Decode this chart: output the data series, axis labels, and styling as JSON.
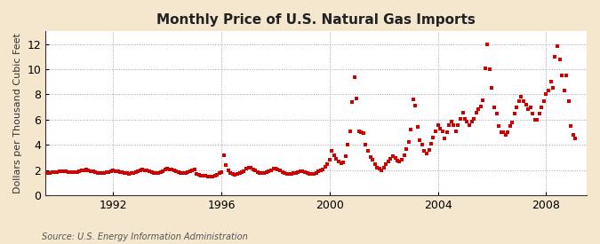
{
  "title": "Monthly Price of U.S. Natural Gas Imports",
  "ylabel": "Dollars per Thousand Cubic Feet",
  "source": "Source: U.S. Energy Information Administration",
  "figure_bg": "#f5e6ce",
  "plot_bg": "#ffffff",
  "marker_color": "#cc0000",
  "grid_color": "#999999",
  "ylim": [
    0,
    13
  ],
  "yticks": [
    0,
    2,
    4,
    6,
    8,
    10,
    12
  ],
  "xticks": [
    1992,
    1996,
    2000,
    2004,
    2008
  ],
  "xlim_start": 1989.5,
  "xlim_end": 2009.5,
  "data": [
    [
      1989.08,
      1.83
    ],
    [
      1989.17,
      1.8
    ],
    [
      1989.25,
      1.79
    ],
    [
      1989.33,
      1.77
    ],
    [
      1989.42,
      1.75
    ],
    [
      1989.5,
      1.74
    ],
    [
      1989.58,
      1.76
    ],
    [
      1989.67,
      1.78
    ],
    [
      1989.75,
      1.82
    ],
    [
      1989.83,
      1.85
    ],
    [
      1989.92,
      1.87
    ],
    [
      1990.0,
      1.9
    ],
    [
      1990.08,
      1.92
    ],
    [
      1990.17,
      1.93
    ],
    [
      1990.25,
      1.9
    ],
    [
      1990.33,
      1.87
    ],
    [
      1990.42,
      1.84
    ],
    [
      1990.5,
      1.83
    ],
    [
      1990.58,
      1.82
    ],
    [
      1990.67,
      1.84
    ],
    [
      1990.75,
      1.88
    ],
    [
      1990.83,
      1.96
    ],
    [
      1990.92,
      2.01
    ],
    [
      1991.0,
      2.03
    ],
    [
      1991.08,
      1.98
    ],
    [
      1991.17,
      1.93
    ],
    [
      1991.25,
      1.88
    ],
    [
      1991.33,
      1.84
    ],
    [
      1991.42,
      1.79
    ],
    [
      1991.5,
      1.77
    ],
    [
      1991.58,
      1.76
    ],
    [
      1991.67,
      1.77
    ],
    [
      1991.75,
      1.81
    ],
    [
      1991.83,
      1.87
    ],
    [
      1991.92,
      1.92
    ],
    [
      1992.0,
      1.95
    ],
    [
      1992.08,
      1.93
    ],
    [
      1992.17,
      1.89
    ],
    [
      1992.25,
      1.85
    ],
    [
      1992.33,
      1.81
    ],
    [
      1992.42,
      1.77
    ],
    [
      1992.5,
      1.75
    ],
    [
      1992.58,
      1.73
    ],
    [
      1992.67,
      1.75
    ],
    [
      1992.75,
      1.79
    ],
    [
      1992.83,
      1.87
    ],
    [
      1992.92,
      1.93
    ],
    [
      1993.0,
      1.99
    ],
    [
      1993.08,
      2.04
    ],
    [
      1993.17,
      2.01
    ],
    [
      1993.25,
      1.97
    ],
    [
      1993.33,
      1.91
    ],
    [
      1993.42,
      1.84
    ],
    [
      1993.5,
      1.79
    ],
    [
      1993.58,
      1.77
    ],
    [
      1993.67,
      1.79
    ],
    [
      1993.75,
      1.85
    ],
    [
      1993.83,
      1.94
    ],
    [
      1993.92,
      2.04
    ],
    [
      1994.0,
      2.09
    ],
    [
      1994.08,
      2.07
    ],
    [
      1994.17,
      2.02
    ],
    [
      1994.25,
      1.96
    ],
    [
      1994.33,
      1.89
    ],
    [
      1994.42,
      1.82
    ],
    [
      1994.5,
      1.77
    ],
    [
      1994.58,
      1.75
    ],
    [
      1994.67,
      1.77
    ],
    [
      1994.75,
      1.82
    ],
    [
      1994.83,
      1.91
    ],
    [
      1994.92,
      1.99
    ],
    [
      1995.0,
      2.04
    ],
    [
      1995.08,
      1.71
    ],
    [
      1995.17,
      1.63
    ],
    [
      1995.25,
      1.58
    ],
    [
      1995.33,
      1.56
    ],
    [
      1995.42,
      1.53
    ],
    [
      1995.5,
      1.5
    ],
    [
      1995.58,
      1.48
    ],
    [
      1995.67,
      1.5
    ],
    [
      1995.75,
      1.56
    ],
    [
      1995.83,
      1.66
    ],
    [
      1995.92,
      1.76
    ],
    [
      1996.0,
      1.83
    ],
    [
      1996.08,
      3.2
    ],
    [
      1996.17,
      2.4
    ],
    [
      1996.25,
      1.95
    ],
    [
      1996.33,
      1.8
    ],
    [
      1996.42,
      1.7
    ],
    [
      1996.5,
      1.66
    ],
    [
      1996.58,
      1.7
    ],
    [
      1996.67,
      1.74
    ],
    [
      1996.75,
      1.82
    ],
    [
      1996.83,
      1.94
    ],
    [
      1996.92,
      2.12
    ],
    [
      1997.0,
      2.22
    ],
    [
      1997.08,
      2.17
    ],
    [
      1997.17,
      2.07
    ],
    [
      1997.25,
      1.97
    ],
    [
      1997.33,
      1.87
    ],
    [
      1997.42,
      1.8
    ],
    [
      1997.5,
      1.77
    ],
    [
      1997.58,
      1.78
    ],
    [
      1997.67,
      1.82
    ],
    [
      1997.75,
      1.9
    ],
    [
      1997.83,
      2.0
    ],
    [
      1997.92,
      2.1
    ],
    [
      1998.0,
      2.14
    ],
    [
      1998.08,
      2.07
    ],
    [
      1998.17,
      1.97
    ],
    [
      1998.25,
      1.87
    ],
    [
      1998.33,
      1.77
    ],
    [
      1998.42,
      1.7
    ],
    [
      1998.5,
      1.67
    ],
    [
      1998.58,
      1.7
    ],
    [
      1998.67,
      1.74
    ],
    [
      1998.75,
      1.8
    ],
    [
      1998.83,
      1.87
    ],
    [
      1998.92,
      1.91
    ],
    [
      1999.0,
      1.89
    ],
    [
      1999.08,
      1.83
    ],
    [
      1999.17,
      1.76
    ],
    [
      1999.25,
      1.71
    ],
    [
      1999.33,
      1.69
    ],
    [
      1999.42,
      1.73
    ],
    [
      1999.5,
      1.8
    ],
    [
      1999.58,
      1.88
    ],
    [
      1999.67,
      1.98
    ],
    [
      1999.75,
      2.08
    ],
    [
      1999.83,
      2.25
    ],
    [
      1999.92,
      2.5
    ],
    [
      2000.0,
      2.8
    ],
    [
      2000.08,
      3.5
    ],
    [
      2000.17,
      3.2
    ],
    [
      2000.25,
      2.9
    ],
    [
      2000.33,
      2.65
    ],
    [
      2000.42,
      2.55
    ],
    [
      2000.5,
      2.6
    ],
    [
      2000.58,
      3.1
    ],
    [
      2000.67,
      4.0
    ],
    [
      2000.75,
      5.1
    ],
    [
      2000.83,
      7.4
    ],
    [
      2000.92,
      9.4
    ],
    [
      2001.0,
      7.7
    ],
    [
      2001.08,
      5.1
    ],
    [
      2001.17,
      5.0
    ],
    [
      2001.25,
      4.9
    ],
    [
      2001.33,
      4.0
    ],
    [
      2001.42,
      3.5
    ],
    [
      2001.5,
      3.0
    ],
    [
      2001.58,
      2.8
    ],
    [
      2001.67,
      2.5
    ],
    [
      2001.75,
      2.2
    ],
    [
      2001.83,
      2.1
    ],
    [
      2001.92,
      2.0
    ],
    [
      2002.0,
      2.2
    ],
    [
      2002.08,
      2.5
    ],
    [
      2002.17,
      2.7
    ],
    [
      2002.25,
      2.9
    ],
    [
      2002.33,
      3.1
    ],
    [
      2002.42,
      2.95
    ],
    [
      2002.5,
      2.75
    ],
    [
      2002.58,
      2.65
    ],
    [
      2002.67,
      2.8
    ],
    [
      2002.75,
      3.2
    ],
    [
      2002.83,
      3.7
    ],
    [
      2002.92,
      4.2
    ],
    [
      2003.0,
      5.2
    ],
    [
      2003.08,
      7.6
    ],
    [
      2003.17,
      7.1
    ],
    [
      2003.25,
      5.4
    ],
    [
      2003.33,
      4.4
    ],
    [
      2003.42,
      4.0
    ],
    [
      2003.5,
      3.5
    ],
    [
      2003.58,
      3.3
    ],
    [
      2003.67,
      3.6
    ],
    [
      2003.75,
      4.1
    ],
    [
      2003.83,
      4.6
    ],
    [
      2003.92,
      5.1
    ],
    [
      2004.0,
      5.6
    ],
    [
      2004.08,
      5.3
    ],
    [
      2004.17,
      5.1
    ],
    [
      2004.25,
      4.5
    ],
    [
      2004.33,
      5.0
    ],
    [
      2004.42,
      5.55
    ],
    [
      2004.5,
      5.85
    ],
    [
      2004.58,
      5.55
    ],
    [
      2004.67,
      5.05
    ],
    [
      2004.75,
      5.55
    ],
    [
      2004.83,
      6.05
    ],
    [
      2004.92,
      6.55
    ],
    [
      2005.0,
      6.05
    ],
    [
      2005.08,
      5.85
    ],
    [
      2005.17,
      5.55
    ],
    [
      2005.25,
      5.85
    ],
    [
      2005.33,
      6.05
    ],
    [
      2005.42,
      6.55
    ],
    [
      2005.5,
      6.85
    ],
    [
      2005.58,
      7.05
    ],
    [
      2005.67,
      7.55
    ],
    [
      2005.75,
      10.1
    ],
    [
      2005.83,
      12.0
    ],
    [
      2005.92,
      10.0
    ],
    [
      2006.0,
      8.5
    ],
    [
      2006.08,
      7.0
    ],
    [
      2006.17,
      6.5
    ],
    [
      2006.25,
      5.5
    ],
    [
      2006.33,
      5.0
    ],
    [
      2006.42,
      5.0
    ],
    [
      2006.5,
      4.8
    ],
    [
      2006.58,
      5.0
    ],
    [
      2006.67,
      5.5
    ],
    [
      2006.75,
      5.8
    ],
    [
      2006.83,
      6.5
    ],
    [
      2006.92,
      7.0
    ],
    [
      2007.0,
      7.5
    ],
    [
      2007.08,
      7.8
    ],
    [
      2007.17,
      7.5
    ],
    [
      2007.25,
      7.2
    ],
    [
      2007.33,
      6.8
    ],
    [
      2007.42,
      7.0
    ],
    [
      2007.5,
      6.5
    ],
    [
      2007.58,
      6.0
    ],
    [
      2007.67,
      6.0
    ],
    [
      2007.75,
      6.5
    ],
    [
      2007.83,
      7.0
    ],
    [
      2007.92,
      7.5
    ],
    [
      2008.0,
      8.0
    ],
    [
      2008.08,
      8.3
    ],
    [
      2008.17,
      9.0
    ],
    [
      2008.25,
      8.5
    ],
    [
      2008.33,
      11.0
    ],
    [
      2008.42,
      11.8
    ],
    [
      2008.5,
      10.8
    ],
    [
      2008.58,
      9.5
    ],
    [
      2008.67,
      8.3
    ],
    [
      2008.75,
      9.5
    ],
    [
      2008.83,
      7.5
    ],
    [
      2008.92,
      5.5
    ],
    [
      2009.0,
      4.8
    ],
    [
      2009.08,
      4.5
    ]
  ]
}
